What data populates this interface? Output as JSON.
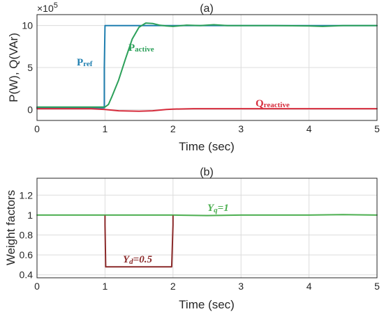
{
  "chart_data": [
    {
      "type": "line",
      "title": "(a)",
      "xlabel": "Time (sec)",
      "ylabel": "P(W), Q(VAr)",
      "y_exponent_label": "×10",
      "y_exponent_power": "5",
      "xlim": [
        0,
        5
      ],
      "ylim": [
        -1.3,
        11.3
      ],
      "x_ticks": [
        "0",
        "1",
        "2",
        "3",
        "4",
        "5"
      ],
      "y_ticks": [
        "0",
        "5",
        "10"
      ],
      "grid": true,
      "series": [
        {
          "name": "P",
          "name_sub": "ref",
          "color": "#1f7fb0",
          "x": [
            0,
            0.99,
            0.99,
            1.0,
            1.0,
            2.0,
            3.0,
            4.0,
            5.0
          ],
          "y": [
            0.2,
            0.2,
            5.0,
            10.0,
            10.0,
            10.0,
            10.0,
            10.0,
            10.0
          ]
        },
        {
          "name": "P",
          "name_sub": "active",
          "color": "#2ca05a",
          "x": [
            0,
            0.8,
            1.0,
            1.05,
            1.1,
            1.2,
            1.3,
            1.4,
            1.5,
            1.6,
            1.7,
            1.8,
            1.9,
            2.0,
            2.2,
            2.4,
            2.6,
            2.8,
            3.0,
            3.5,
            4.0,
            4.2,
            4.5,
            5.0
          ],
          "y": [
            0.3,
            0.3,
            0.3,
            0.6,
            1.5,
            3.5,
            6.0,
            8.4,
            9.8,
            10.3,
            10.25,
            10.05,
            9.95,
            9.9,
            10.05,
            10.0,
            10.1,
            10.0,
            10.0,
            10.0,
            9.95,
            9.9,
            10.0,
            10.0
          ]
        },
        {
          "name": "Q",
          "name_sub": "reactive",
          "color": "#d62c3c",
          "x": [
            0,
            0.8,
            1.0,
            1.2,
            1.5,
            1.7,
            1.9,
            2.0,
            2.3,
            2.6,
            3.0,
            4.0,
            5.0
          ],
          "y": [
            0.1,
            0.1,
            0.0,
            -0.15,
            -0.2,
            -0.15,
            0.0,
            0.05,
            0.1,
            0.1,
            0.1,
            0.1,
            0.1
          ]
        }
      ]
    },
    {
      "type": "line",
      "title": "(b)",
      "xlabel": "Time (sec)",
      "ylabel": "Weight factors",
      "xlim": [
        0,
        5
      ],
      "ylim": [
        0.37,
        1.37
      ],
      "x_ticks": [
        "0",
        "1",
        "2",
        "3",
        "4",
        "5"
      ],
      "y_ticks": [
        "0.4",
        "0.6",
        "0.8",
        "1",
        "1.2"
      ],
      "grid": true,
      "series": [
        {
          "name": "Y",
          "name_sub": "q",
          "name_value": "=1",
          "color": "#4caf50",
          "x": [
            0,
            1.0,
            1.5,
            2.0,
            2.5,
            3.0,
            3.5,
            4.0,
            4.5,
            5.0
          ],
          "y": [
            1.0,
            1.0,
            1.0,
            1.0,
            0.995,
            1.0,
            1.0,
            1.0,
            1.005,
            1.0
          ]
        },
        {
          "name": "Y",
          "name_sub": "d",
          "name_value": "=0.5",
          "color": "#8b2a2a",
          "x": [
            1.0,
            1.0,
            1.01,
            1.3,
            1.7,
            1.98,
            2.0,
            2.0
          ],
          "y": [
            0.99,
            0.9,
            0.48,
            0.48,
            0.48,
            0.48,
            0.9,
            0.99
          ]
        }
      ]
    }
  ]
}
